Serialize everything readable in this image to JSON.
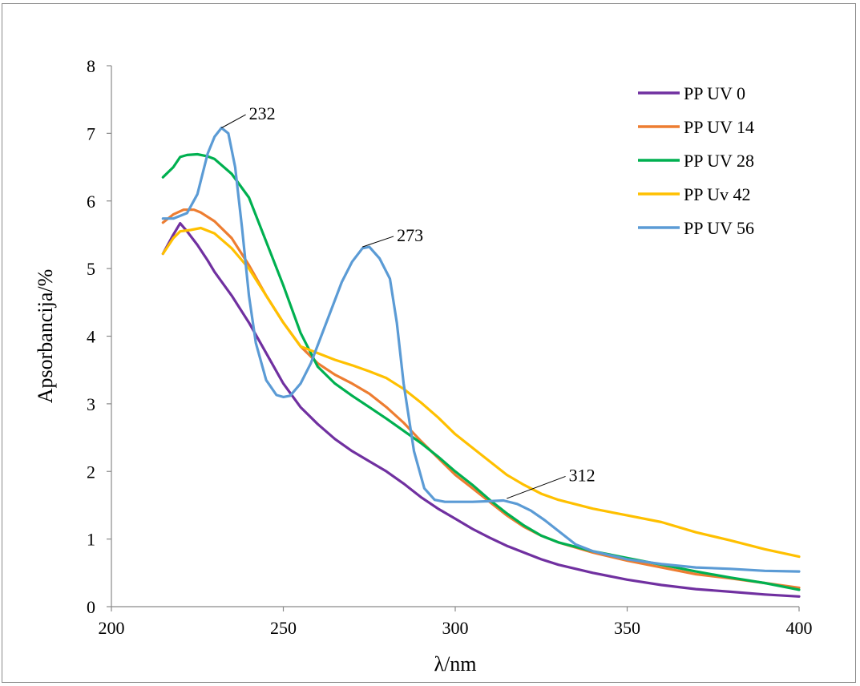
{
  "chart_data": {
    "type": "line",
    "title": "",
    "xlabel": "λ/nm",
    "ylabel": "Apsorbancija/%",
    "xlim": [
      200,
      400
    ],
    "ylim": [
      0,
      8
    ],
    "x_ticks": [
      200,
      250,
      300,
      350,
      400
    ],
    "y_ticks": [
      0,
      1,
      2,
      3,
      4,
      5,
      6,
      7,
      8
    ],
    "grid": false,
    "legend_position": "top-right",
    "series": [
      {
        "name": "PP UV 0",
        "color": "#7030a0",
        "points": [
          [
            215,
            5.22
          ],
          [
            218,
            5.5
          ],
          [
            220,
            5.67
          ],
          [
            222,
            5.55
          ],
          [
            225,
            5.35
          ],
          [
            228,
            5.12
          ],
          [
            230,
            4.95
          ],
          [
            235,
            4.6
          ],
          [
            240,
            4.2
          ],
          [
            245,
            3.75
          ],
          [
            250,
            3.3
          ],
          [
            255,
            2.95
          ],
          [
            260,
            2.7
          ],
          [
            265,
            2.48
          ],
          [
            270,
            2.3
          ],
          [
            275,
            2.15
          ],
          [
            280,
            2.0
          ],
          [
            285,
            1.82
          ],
          [
            290,
            1.62
          ],
          [
            295,
            1.45
          ],
          [
            300,
            1.3
          ],
          [
            305,
            1.15
          ],
          [
            310,
            1.02
          ],
          [
            315,
            0.9
          ],
          [
            320,
            0.8
          ],
          [
            325,
            0.7
          ],
          [
            330,
            0.62
          ],
          [
            340,
            0.5
          ],
          [
            350,
            0.4
          ],
          [
            360,
            0.32
          ],
          [
            370,
            0.26
          ],
          [
            380,
            0.22
          ],
          [
            390,
            0.18
          ],
          [
            400,
            0.15
          ]
        ]
      },
      {
        "name": "PP UV 14",
        "color": "#ed7d31",
        "points": [
          [
            215,
            5.68
          ],
          [
            218,
            5.8
          ],
          [
            221,
            5.87
          ],
          [
            224,
            5.87
          ],
          [
            226,
            5.83
          ],
          [
            230,
            5.7
          ],
          [
            235,
            5.45
          ],
          [
            240,
            5.05
          ],
          [
            245,
            4.6
          ],
          [
            250,
            4.2
          ],
          [
            255,
            3.85
          ],
          [
            260,
            3.6
          ],
          [
            265,
            3.43
          ],
          [
            270,
            3.3
          ],
          [
            275,
            3.15
          ],
          [
            280,
            2.95
          ],
          [
            285,
            2.72
          ],
          [
            290,
            2.45
          ],
          [
            295,
            2.2
          ],
          [
            300,
            1.95
          ],
          [
            305,
            1.75
          ],
          [
            310,
            1.55
          ],
          [
            315,
            1.35
          ],
          [
            320,
            1.18
          ],
          [
            325,
            1.05
          ],
          [
            330,
            0.95
          ],
          [
            340,
            0.8
          ],
          [
            350,
            0.68
          ],
          [
            360,
            0.58
          ],
          [
            370,
            0.48
          ],
          [
            380,
            0.42
          ],
          [
            390,
            0.35
          ],
          [
            400,
            0.28
          ]
        ]
      },
      {
        "name": "PP UV 28",
        "color": "#00b050",
        "points": [
          [
            215,
            6.35
          ],
          [
            218,
            6.5
          ],
          [
            220,
            6.65
          ],
          [
            222,
            6.68
          ],
          [
            225,
            6.69
          ],
          [
            228,
            6.66
          ],
          [
            230,
            6.62
          ],
          [
            235,
            6.4
          ],
          [
            240,
            6.05
          ],
          [
            245,
            5.4
          ],
          [
            250,
            4.75
          ],
          [
            255,
            4.05
          ],
          [
            260,
            3.55
          ],
          [
            265,
            3.3
          ],
          [
            270,
            3.12
          ],
          [
            275,
            2.95
          ],
          [
            280,
            2.78
          ],
          [
            285,
            2.6
          ],
          [
            290,
            2.42
          ],
          [
            295,
            2.22
          ],
          [
            300,
            2.0
          ],
          [
            305,
            1.8
          ],
          [
            310,
            1.58
          ],
          [
            315,
            1.38
          ],
          [
            320,
            1.2
          ],
          [
            325,
            1.05
          ],
          [
            330,
            0.95
          ],
          [
            340,
            0.82
          ],
          [
            350,
            0.72
          ],
          [
            360,
            0.62
          ],
          [
            370,
            0.52
          ],
          [
            380,
            0.43
          ],
          [
            390,
            0.35
          ],
          [
            400,
            0.25
          ]
        ]
      },
      {
        "name": "PP Uv 42",
        "color": "#ffc000",
        "points": [
          [
            215,
            5.22
          ],
          [
            218,
            5.45
          ],
          [
            220,
            5.55
          ],
          [
            223,
            5.57
          ],
          [
            226,
            5.6
          ],
          [
            230,
            5.52
          ],
          [
            235,
            5.3
          ],
          [
            240,
            5.0
          ],
          [
            245,
            4.6
          ],
          [
            250,
            4.2
          ],
          [
            255,
            3.85
          ],
          [
            260,
            3.75
          ],
          [
            265,
            3.65
          ],
          [
            270,
            3.57
          ],
          [
            275,
            3.48
          ],
          [
            280,
            3.38
          ],
          [
            285,
            3.22
          ],
          [
            290,
            3.02
          ],
          [
            295,
            2.8
          ],
          [
            300,
            2.55
          ],
          [
            305,
            2.35
          ],
          [
            310,
            2.15
          ],
          [
            315,
            1.95
          ],
          [
            320,
            1.8
          ],
          [
            325,
            1.67
          ],
          [
            330,
            1.58
          ],
          [
            340,
            1.45
          ],
          [
            350,
            1.35
          ],
          [
            360,
            1.25
          ],
          [
            370,
            1.1
          ],
          [
            380,
            0.98
          ],
          [
            390,
            0.85
          ],
          [
            400,
            0.74
          ]
        ]
      },
      {
        "name": "PP UV 56",
        "color": "#5b9bd5",
        "points": [
          [
            215,
            5.74
          ],
          [
            218,
            5.74
          ],
          [
            222,
            5.82
          ],
          [
            225,
            6.1
          ],
          [
            228,
            6.7
          ],
          [
            230,
            6.95
          ],
          [
            232,
            7.08
          ],
          [
            234,
            7.0
          ],
          [
            236,
            6.5
          ],
          [
            238,
            5.6
          ],
          [
            240,
            4.6
          ],
          [
            242,
            3.9
          ],
          [
            245,
            3.35
          ],
          [
            248,
            3.13
          ],
          [
            250,
            3.1
          ],
          [
            252,
            3.12
          ],
          [
            255,
            3.3
          ],
          [
            258,
            3.6
          ],
          [
            261,
            4.0
          ],
          [
            264,
            4.4
          ],
          [
            267,
            4.8
          ],
          [
            270,
            5.1
          ],
          [
            273,
            5.3
          ],
          [
            275,
            5.32
          ],
          [
            278,
            5.15
          ],
          [
            281,
            4.85
          ],
          [
            283,
            4.2
          ],
          [
            285,
            3.3
          ],
          [
            288,
            2.3
          ],
          [
            291,
            1.75
          ],
          [
            294,
            1.58
          ],
          [
            297,
            1.55
          ],
          [
            300,
            1.55
          ],
          [
            305,
            1.55
          ],
          [
            310,
            1.56
          ],
          [
            314,
            1.57
          ],
          [
            318,
            1.52
          ],
          [
            322,
            1.42
          ],
          [
            326,
            1.28
          ],
          [
            330,
            1.12
          ],
          [
            335,
            0.92
          ],
          [
            340,
            0.82
          ],
          [
            350,
            0.7
          ],
          [
            360,
            0.63
          ],
          [
            370,
            0.58
          ],
          [
            380,
            0.56
          ],
          [
            390,
            0.53
          ],
          [
            400,
            0.52
          ]
        ]
      }
    ],
    "annotations": [
      {
        "label": "232",
        "x": 232,
        "y": 7.08,
        "label_x": 240,
        "label_y": 7.3
      },
      {
        "label": "273",
        "x": 273,
        "y": 5.32,
        "label_x": 283,
        "label_y": 5.5
      },
      {
        "label": "312",
        "x": 315,
        "y": 1.6,
        "label_x": 333,
        "label_y": 1.95
      }
    ]
  }
}
